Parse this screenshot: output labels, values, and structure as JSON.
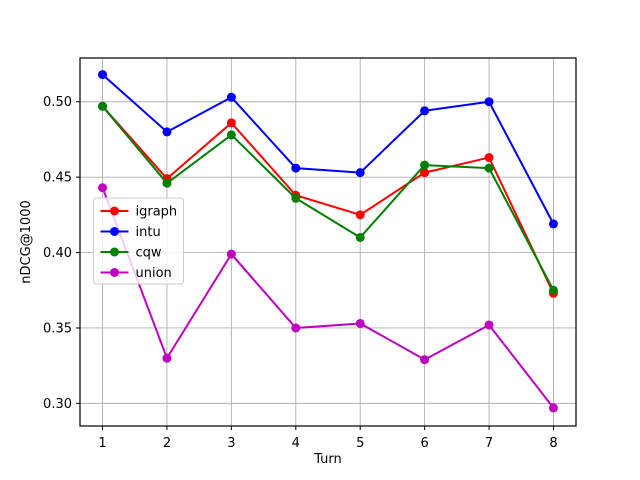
{
  "figure": {
    "background": "#ffffff",
    "frame_color": "#000000",
    "grid_color": "#b0b0b0",
    "legend_border_color": "#cccccc",
    "text_color": "#000000"
  },
  "chart_data": {
    "type": "line",
    "title": "",
    "xlabel": "Turn",
    "ylabel": "nDCG@1000",
    "grid": true,
    "legend_position": "center left inside",
    "x": [
      1,
      2,
      3,
      4,
      5,
      6,
      7,
      8
    ],
    "xlim": [
      0.65,
      8.35
    ],
    "ylim": [
      0.285,
      0.529
    ],
    "xticks": [
      "1",
      "2",
      "3",
      "4",
      "5",
      "6",
      "7",
      "8"
    ],
    "xtick_values": [
      1,
      2,
      3,
      4,
      5,
      6,
      7,
      8
    ],
    "yticks": [
      "0.30",
      "0.35",
      "0.40",
      "0.45",
      "0.50"
    ],
    "ytick_values": [
      0.3,
      0.35,
      0.4,
      0.45,
      0.5
    ],
    "series": [
      {
        "name": "igraph",
        "color": "#ff0000",
        "marker": "circle",
        "values": [
          0.497,
          0.449,
          0.486,
          0.438,
          0.425,
          0.453,
          0.463,
          0.373
        ]
      },
      {
        "name": "intu",
        "color": "#0000ff",
        "marker": "circle",
        "values": [
          0.518,
          0.48,
          0.503,
          0.456,
          0.453,
          0.494,
          0.5,
          0.419
        ]
      },
      {
        "name": "cqw",
        "color": "#008000",
        "marker": "circle",
        "values": [
          0.497,
          0.446,
          0.478,
          0.436,
          0.41,
          0.458,
          0.456,
          0.375
        ]
      },
      {
        "name": "union",
        "color": "#bf00bf",
        "marker": "circle",
        "values": [
          0.443,
          0.33,
          0.399,
          0.35,
          0.353,
          0.329,
          0.352,
          0.297
        ]
      }
    ]
  }
}
